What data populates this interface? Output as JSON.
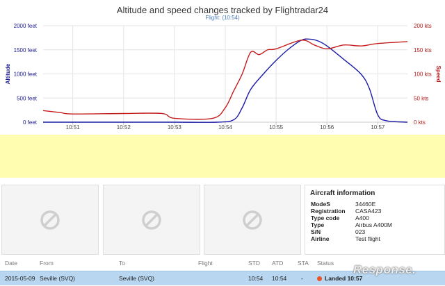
{
  "chart_data": {
    "type": "line",
    "title": "Altitude and speed changes tracked by Flightradar24",
    "subtitle": "Flight: (10:54)",
    "ylabel_left": "Altitude",
    "ylabel_right": "Speed",
    "ylim_left": [
      0,
      2000
    ],
    "ylim_right": [
      0,
      200
    ],
    "yticks_left": [
      "0 feet",
      "500 feet",
      "1000 feet",
      "1500 feet",
      "2000 feet"
    ],
    "yticks_right": [
      "0 kts",
      "50 kts",
      "100 kts",
      "150 kts",
      "200 kts"
    ],
    "xlim": [
      "10:50:25",
      "10:57:35"
    ],
    "xticks": [
      "10:51",
      "10:52",
      "10:53",
      "10:54",
      "10:55",
      "10:56",
      "10:57"
    ],
    "grid": true,
    "series": [
      {
        "name": "Altitude",
        "axis": "left",
        "color": "#1a1aa6",
        "x": [
          "10:50:25",
          "10:51:00",
          "10:52:00",
          "10:53:00",
          "10:53:50",
          "10:54:10",
          "10:54:20",
          "10:54:30",
          "10:54:45",
          "10:55:00",
          "10:55:15",
          "10:55:30",
          "10:55:40",
          "10:55:50",
          "10:56:00",
          "10:56:20",
          "10:56:40",
          "10:56:50",
          "10:57:00",
          "10:57:10",
          "10:57:35"
        ],
        "values": [
          0,
          0,
          0,
          0,
          0,
          50,
          300,
          680,
          1000,
          1280,
          1520,
          1700,
          1720,
          1680,
          1580,
          1300,
          1000,
          700,
          150,
          30,
          0
        ]
      },
      {
        "name": "Speed",
        "axis": "right",
        "color": "#c41a1a",
        "x": [
          "10:50:25",
          "10:50:45",
          "10:51:00",
          "10:52:00",
          "10:52:45",
          "10:53:00",
          "10:53:45",
          "10:54:00",
          "10:54:10",
          "10:54:20",
          "10:54:30",
          "10:54:40",
          "10:54:50",
          "10:55:00",
          "10:55:30",
          "10:55:45",
          "10:56:00",
          "10:56:20",
          "10:56:40",
          "10:57:00",
          "10:57:35"
        ],
        "values": [
          24,
          20,
          17,
          18,
          18,
          8,
          8,
          30,
          65,
          100,
          145,
          140,
          150,
          152,
          170,
          160,
          152,
          160,
          158,
          163,
          167
        ]
      }
    ]
  },
  "aircraft": {
    "title": "Aircraft information",
    "rows": [
      {
        "key": "ModeS",
        "value": "34460E"
      },
      {
        "key": "Registration",
        "value": "CASA423"
      },
      {
        "key": "Type code",
        "value": "A400"
      },
      {
        "key": "Type",
        "value": "Airbus A400M"
      },
      {
        "key": "S/N",
        "value": "023"
      },
      {
        "key": "Airline",
        "value": "Test flight"
      }
    ]
  },
  "thumbnails": [
    {
      "icon": "no-image-icon"
    },
    {
      "icon": "no-image-icon"
    },
    {
      "icon": "no-image-icon"
    }
  ],
  "table": {
    "headers": {
      "date": "Date",
      "from": "From",
      "to": "To",
      "flight": "Flight",
      "std": "STD",
      "atd": "ATD",
      "sta": "STA",
      "status": "Status"
    },
    "row": {
      "date": "2015-05-09",
      "from": "Seville (SVQ)",
      "to": "Seville (SVQ)",
      "flight": "",
      "std": "10:54",
      "atd": "10:54",
      "sta": "-",
      "status": "Landed 10:57",
      "status_color": "#e8542a"
    }
  },
  "watermark": "Response."
}
